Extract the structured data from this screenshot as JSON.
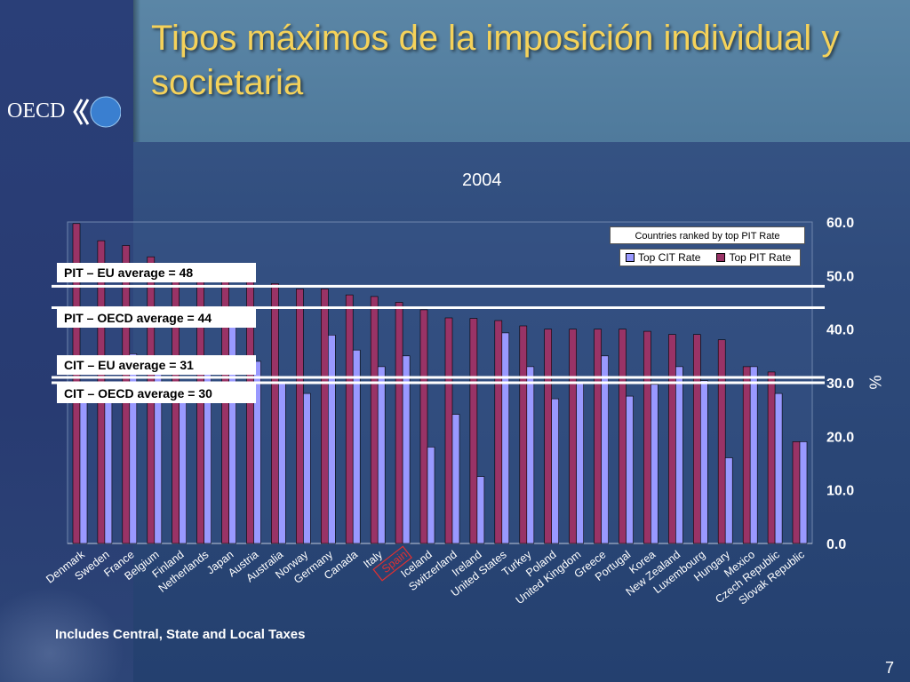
{
  "title": "Tipos máximos de la imposición individual y societaria",
  "logo_text": "OECD",
  "page_number": "7",
  "footnote": "Includes Central, State and Local Taxes",
  "colors": {
    "pit": "#993366",
    "cit": "#9999ff",
    "title": "#f5d25a"
  },
  "reference_lines": [
    {
      "label": "PIT – EU average = 48",
      "value": 48
    },
    {
      "label": "PIT – OECD average = 44",
      "value": 44
    },
    {
      "label": "CIT – EU average = 31",
      "value": 31
    },
    {
      "label": "CIT – OECD average = 30",
      "value": 30
    }
  ],
  "chart_data": {
    "type": "bar",
    "title": "2004",
    "legend_title": "Countries ranked by  top PIT Rate",
    "legend_position": "top-right",
    "ylabel": "%",
    "ylim": [
      0,
      60
    ],
    "yticks": [
      "0.0",
      "10.0",
      "20.0",
      "30.0",
      "40.0",
      "50.0",
      "60.0"
    ],
    "categories": [
      "Denmark",
      "Sweden",
      "France",
      "Belgium",
      "Finland",
      "Netherlands",
      "Japan",
      "Austria",
      "Australia",
      "Norway",
      "Germany",
      "Canada",
      "Italy",
      "Spain",
      "Iceland",
      "Switzerland",
      "Ireland",
      "United States",
      "Turkey",
      "Poland",
      "United Kingdom",
      "Greece",
      "Portugal",
      "Korea",
      "New Zealand",
      "Luxembourg",
      "Hungary",
      "Mexico",
      "Czech Republic",
      "Slovak Republic"
    ],
    "highlight_category": "Spain",
    "series": [
      {
        "name": "Top CIT Rate",
        "values": [
          30,
          28,
          35.4,
          34,
          29,
          34.5,
          40.9,
          34,
          30,
          28,
          38.9,
          36.1,
          33,
          35,
          18,
          24.1,
          12.5,
          39.3,
          33,
          27,
          30,
          35,
          27.5,
          29.7,
          33,
          30.4,
          16,
          33,
          28,
          19
        ]
      },
      {
        "name": "Top PIT Rate",
        "values": [
          59.7,
          56.5,
          55.6,
          53.5,
          52.1,
          52,
          50,
          50,
          48.5,
          47.5,
          47.5,
          46.4,
          46.1,
          45,
          43.6,
          42.1,
          42,
          41.6,
          40.6,
          40,
          40,
          40,
          40,
          39.6,
          39,
          39,
          38,
          33,
          32,
          19
        ]
      }
    ]
  }
}
